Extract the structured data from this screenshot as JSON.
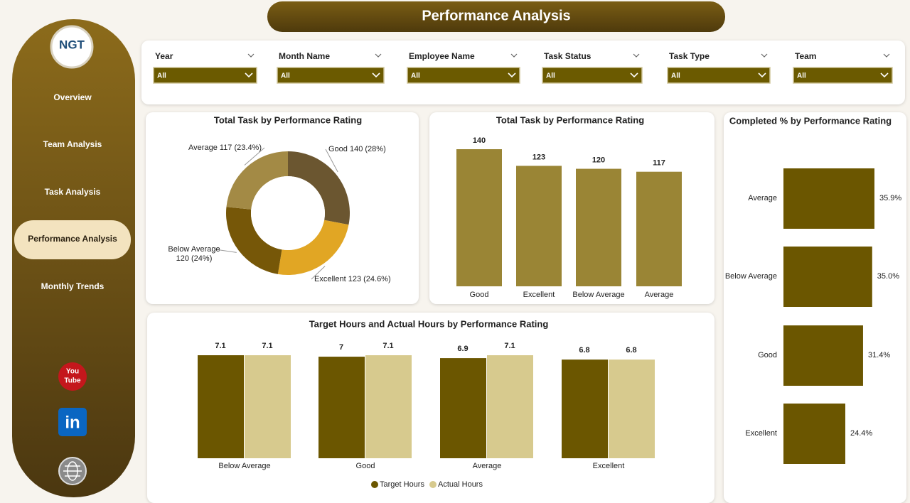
{
  "header": {
    "title": "Performance  Analysis"
  },
  "logo": "NGT",
  "nav": [
    "Overview",
    "Team Analysis",
    "Task Analysis",
    "Performance Analysis",
    "Monthly Trends"
  ],
  "social": {
    "youtube": [
      "You",
      "Tube"
    ],
    "linkedin": "in"
  },
  "filters": [
    {
      "label": "Year",
      "value": "All"
    },
    {
      "label": "Month Name",
      "value": "All"
    },
    {
      "label": "Employee Name",
      "value": "All"
    },
    {
      "label": "Task Status",
      "value": "All"
    },
    {
      "label": "Task Type",
      "value": "All"
    },
    {
      "label": "Team",
      "value": "All"
    }
  ],
  "chart_data": [
    {
      "type": "pie",
      "title": "Total Task by Performance Rating",
      "categories": [
        "Good",
        "Excellent",
        "Below Average",
        "Average"
      ],
      "values": [
        140,
        123,
        120,
        117
      ],
      "value_labels": [
        "140 (28%)",
        "123 (24.6%)",
        "120 (24%)",
        "117 (23.4%)"
      ],
      "colors": [
        "#6b5630",
        "#e1a624",
        "#765708",
        "#a38a45"
      ]
    },
    {
      "type": "bar",
      "title": "Total Task by Performance Rating",
      "categories": [
        "Good",
        "Excellent",
        "Below Average",
        "Average"
      ],
      "values": [
        140,
        123,
        120,
        117
      ],
      "color": "#9a8535"
    },
    {
      "type": "hbar",
      "title": "Completed % by Performance Rating",
      "categories": [
        "Average",
        "Below Average",
        "Good",
        "Excellent"
      ],
      "values": [
        35.9,
        35.0,
        31.4,
        24.4
      ],
      "value_labels": [
        "35.9%",
        "35.0%",
        "31.4%",
        "24.4%"
      ],
      "color": "#6b5600"
    },
    {
      "type": "grouped-bar",
      "title": "Target Hours and Actual Hours by Performance Rating",
      "categories": [
        "Below Average",
        "Good",
        "Average",
        "Excellent"
      ],
      "series": [
        {
          "name": "Target Hours",
          "color": "#6b5600",
          "values": [
            7.1,
            7.0,
            6.9,
            6.8
          ]
        },
        {
          "name": "Actual Hours",
          "color": "#d7ca8e",
          "values": [
            7.1,
            7.1,
            7.1,
            6.8
          ]
        }
      ]
    }
  ]
}
